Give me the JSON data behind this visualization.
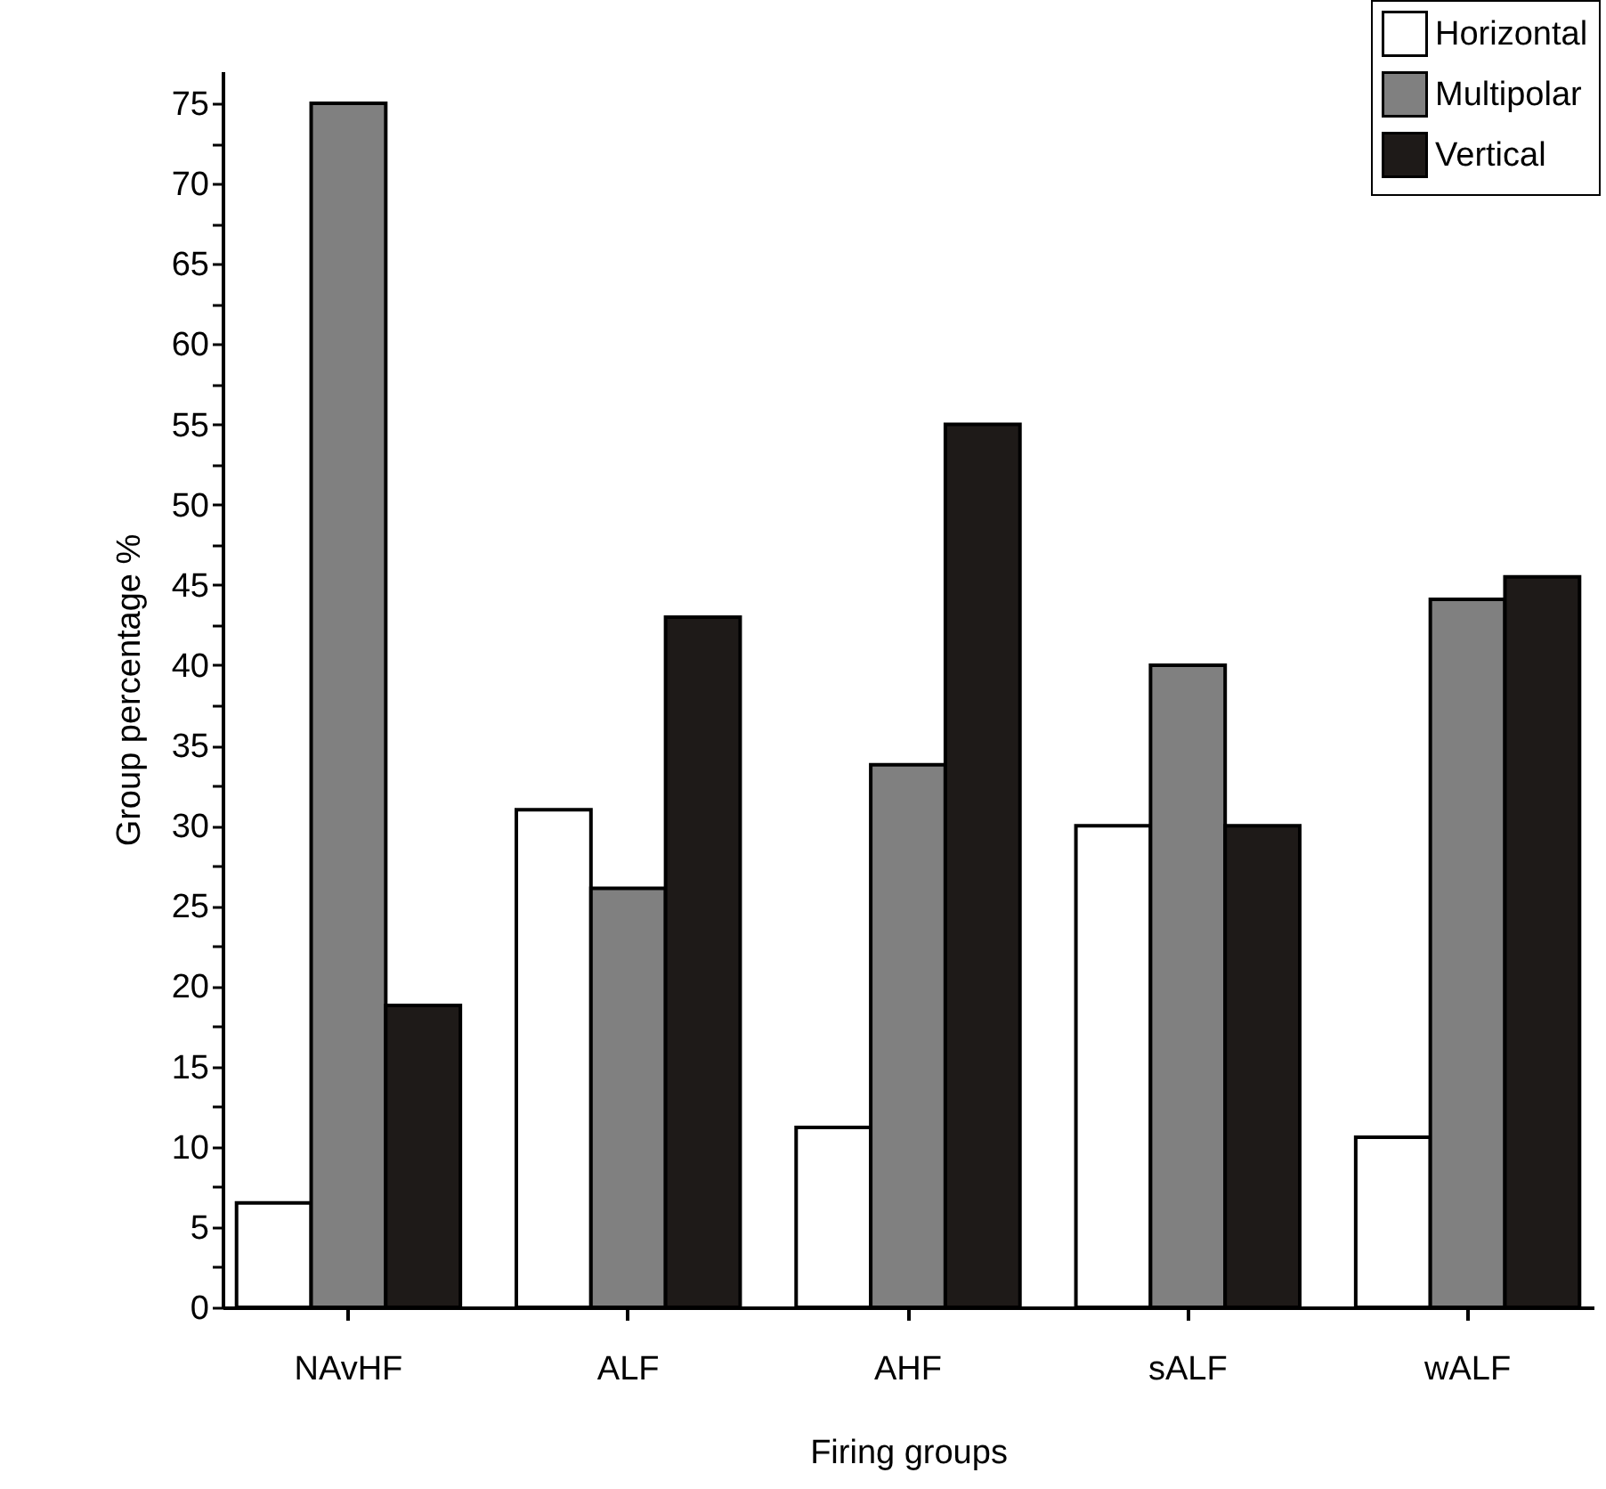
{
  "chart_data": {
    "type": "bar",
    "xlabel": "Firing groups",
    "ylabel": "Group percentage %",
    "categories": [
      "NAvHF",
      "ALF",
      "AHF",
      "sALF",
      "wALF"
    ],
    "series": [
      {
        "name": "Horizontal",
        "color": "#ffffff",
        "values": [
          6.5,
          31,
          11.2,
          30,
          10.6
        ]
      },
      {
        "name": "Multipolar",
        "color": "#808080",
        "values": [
          75,
          26.1,
          33.8,
          40,
          44.1
        ]
      },
      {
        "name": "Vertical",
        "color": "#1e1a18",
        "values": [
          18.8,
          43,
          55,
          30,
          45.5
        ]
      }
    ],
    "ylim": [
      0,
      77
    ],
    "yticks": [
      0,
      {
        "value": 2.5,
        "label": null
      },
      5,
      {
        "value": 7.5,
        "label": null
      },
      10,
      {
        "value": 12.5,
        "label": null
      },
      15,
      {
        "value": 17.5,
        "label": null
      },
      20,
      {
        "value": 22.5,
        "label": null
      },
      25,
      {
        "value": 27.5,
        "label": null
      },
      30,
      {
        "value": 32.5,
        "label": null
      },
      35,
      {
        "value": 37.5,
        "label": null
      },
      40,
      {
        "value": 42.5,
        "label": null
      },
      45,
      {
        "value": 47.5,
        "label": null
      },
      50,
      {
        "value": 52.5,
        "label": null
      },
      55,
      {
        "value": 57.5,
        "label": null
      },
      60,
      {
        "value": 62.5,
        "label": null
      },
      65,
      {
        "value": 67.5,
        "label": null
      },
      70,
      {
        "value": 72.5,
        "label": null
      },
      75
    ],
    "grid": false,
    "legend": "top right"
  }
}
